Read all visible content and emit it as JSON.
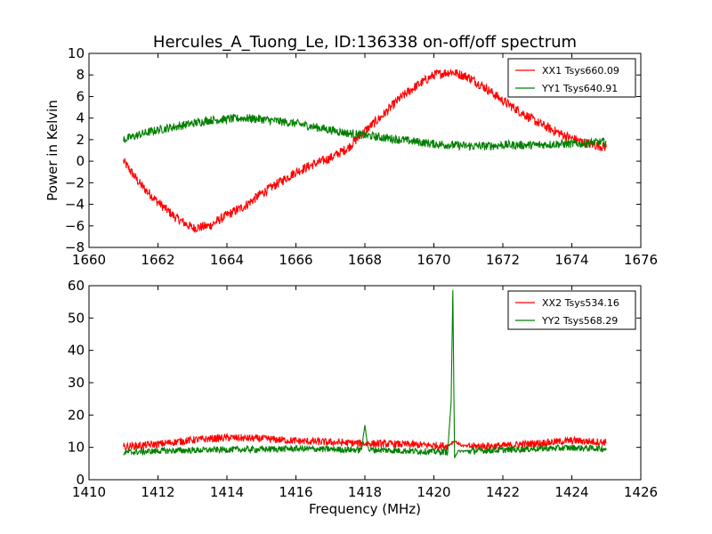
{
  "title": "Hercules_A_Tuong_Le, ID:136338 on-off/off spectrum",
  "colors": {
    "xx": "#ff0000",
    "yy": "#007f00"
  },
  "chart_data": [
    {
      "type": "line",
      "ylabel": "Power in Kelvin",
      "xlabel": "",
      "xlim": [
        1660,
        1676
      ],
      "ylim": [
        -8,
        10
      ],
      "x_ticks": [
        "1660",
        "1662",
        "1664",
        "1666",
        "1668",
        "1670",
        "1672",
        "1674",
        "1676"
      ],
      "y_ticks": [
        "−8",
        "−6",
        "−4",
        "−2",
        "0",
        "2",
        "4",
        "6",
        "8",
        "10"
      ],
      "legend_position": "top-right",
      "series": [
        {
          "name": "XX1 Tsys660.09",
          "color": "#ff0000",
          "x": [
            1661,
            1661.5,
            1662,
            1662.5,
            1663,
            1663.5,
            1664,
            1664.5,
            1665,
            1665.5,
            1666,
            1666.5,
            1667,
            1667.5,
            1668,
            1668.5,
            1669,
            1669.5,
            1670,
            1670.5,
            1671,
            1671.5,
            1672,
            1672.5,
            1673,
            1673.5,
            1674,
            1674.5,
            1675
          ],
          "y": [
            0,
            -2.2,
            -3.8,
            -5.2,
            -6.2,
            -6.0,
            -5.0,
            -4.2,
            -3.0,
            -2.0,
            -1.0,
            -0.3,
            0.3,
            1.2,
            2.8,
            4.2,
            5.8,
            7.0,
            8.0,
            8.3,
            7.8,
            6.8,
            5.6,
            4.6,
            3.6,
            2.8,
            2.1,
            1.6,
            1.3
          ]
        },
        {
          "name": "YY1 Tsys640.91",
          "color": "#007f00",
          "x": [
            1661,
            1661.5,
            1662,
            1662.5,
            1663,
            1663.5,
            1664,
            1664.5,
            1665,
            1665.5,
            1666,
            1666.5,
            1667,
            1667.5,
            1668,
            1668.5,
            1669,
            1669.5,
            1670,
            1670.5,
            1671,
            1671.5,
            1672,
            1672.5,
            1673,
            1673.5,
            1674,
            1674.5,
            1675
          ],
          "y": [
            2.0,
            2.5,
            2.9,
            3.2,
            3.5,
            3.8,
            3.9,
            4.0,
            3.9,
            3.7,
            3.5,
            3.2,
            2.9,
            2.6,
            2.4,
            2.2,
            2.0,
            1.8,
            1.6,
            1.5,
            1.4,
            1.4,
            1.5,
            1.5,
            1.5,
            1.6,
            1.6,
            1.7,
            1.8
          ]
        }
      ]
    },
    {
      "type": "line",
      "ylabel": "",
      "xlabel": "Frequency (MHz)",
      "xlim": [
        1410,
        1426
      ],
      "ylim": [
        0,
        60
      ],
      "x_ticks": [
        "1410",
        "1412",
        "1414",
        "1416",
        "1418",
        "1420",
        "1422",
        "1424",
        "1426"
      ],
      "y_ticks": [
        "0",
        "10",
        "20",
        "30",
        "40",
        "50",
        "60"
      ],
      "legend_position": "top-right",
      "series": [
        {
          "name": "XX2 Tsys534.16",
          "color": "#ff0000",
          "x": [
            1411,
            1412,
            1413,
            1414,
            1415,
            1416,
            1417,
            1418,
            1419,
            1420,
            1420.4,
            1420.6,
            1420.8,
            1421,
            1422,
            1423,
            1424,
            1425
          ],
          "y": [
            10.2,
            11.0,
            12.3,
            13.0,
            12.7,
            12.0,
            11.6,
            11.2,
            11.0,
            10.6,
            10.4,
            12.0,
            10.6,
            10.3,
            10.5,
            11.3,
            12.1,
            11.6
          ]
        },
        {
          "name": "YY2 Tsys568.29",
          "color": "#007f00",
          "x": [
            1411,
            1412,
            1413,
            1414,
            1415,
            1416,
            1417,
            1417.9,
            1418.0,
            1418.1,
            1419,
            1420,
            1420.4,
            1420.5,
            1420.55,
            1420.6,
            1420.7,
            1421,
            1422,
            1423,
            1424,
            1425
          ],
          "y": [
            8.4,
            8.9,
            9.1,
            9.3,
            9.4,
            9.6,
            9.4,
            9.2,
            16.8,
            9.3,
            9.0,
            8.7,
            8.6,
            24.0,
            58.5,
            7.0,
            8.8,
            8.9,
            9.2,
            9.6,
            9.9,
            9.6
          ]
        }
      ]
    }
  ]
}
